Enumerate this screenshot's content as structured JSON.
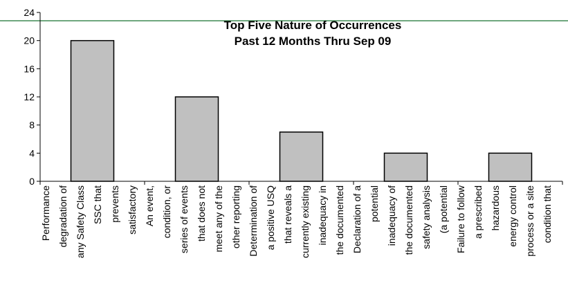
{
  "chart_data": {
    "type": "bar",
    "title": [
      "Top Five Nature of Occurrences",
      "Past 12 Months Thru Sep 09"
    ],
    "categories": [
      [
        "Performance",
        "degradation of",
        "any Safety Class",
        "SSC that",
        "prevents",
        "satisfactory"
      ],
      [
        "An event,",
        "condition, or",
        "series of events",
        "that does not",
        "meet any of the",
        "other reporting"
      ],
      [
        "Determination of",
        "a positive USQ",
        "that reveals a",
        "currently existing",
        "inadequacy in",
        "the documented"
      ],
      [
        "Declaration of a",
        "potential",
        "inadequacy of",
        "the documented",
        "safety analysis",
        "(a potential"
      ],
      [
        "Failure to follow",
        "a prescribed",
        "hazardous",
        "energy control",
        "process or a site",
        "condition that"
      ]
    ],
    "values": [
      20,
      12,
      7,
      4,
      4
    ],
    "color": "#c0c0c0",
    "ylim": [
      0,
      24
    ],
    "yticks": [
      0,
      4,
      8,
      12,
      16,
      20,
      24
    ]
  }
}
